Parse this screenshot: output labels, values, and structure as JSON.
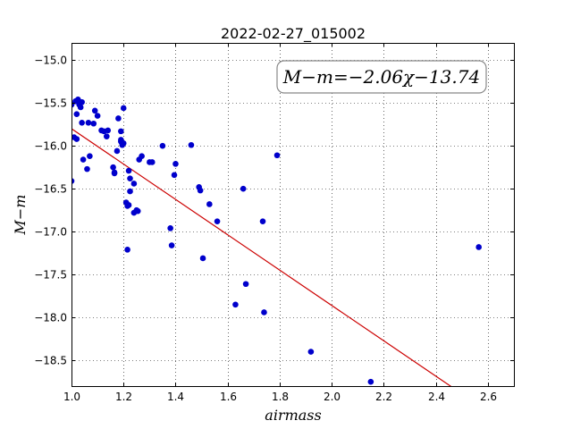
{
  "chart_data": {
    "type": "scatter",
    "title": "2022-02-27_015002",
    "xlabel": "airmass",
    "ylabel": "M−m",
    "xlim": [
      1.0,
      2.7
    ],
    "ylim": [
      -18.8,
      -14.8
    ],
    "y_inverted": true,
    "grid": true,
    "xticks": [
      1.0,
      1.2,
      1.4,
      1.6,
      1.8,
      2.0,
      2.2,
      2.4,
      2.6
    ],
    "xtick_labels": [
      "1.0",
      "1.2",
      "1.4",
      "1.6",
      "1.8",
      "2.0",
      "2.2",
      "2.4",
      "2.6"
    ],
    "yticks": [
      -15.0,
      -15.5,
      -16.0,
      -16.5,
      -17.0,
      -17.5,
      -18.0,
      -18.5
    ],
    "ytick_labels": [
      "−15.0",
      "−15.5",
      "−16.0",
      "−16.5",
      "−17.0",
      "−17.5",
      "−18.0",
      "−18.5"
    ],
    "annotation": "M−m=−2.06χ−13.74",
    "fit": {
      "slope": -2.06,
      "intercept": -13.74,
      "color": "#cc0000"
    },
    "marker_color": "#0000cc",
    "points": [
      [
        1.0,
        -15.52
      ],
      [
        1.0,
        -16.41
      ],
      [
        1.01,
        -15.9
      ],
      [
        1.015,
        -15.48
      ],
      [
        1.02,
        -15.63
      ],
      [
        1.02,
        -15.92
      ],
      [
        1.025,
        -15.46
      ],
      [
        1.03,
        -15.52
      ],
      [
        1.035,
        -15.55
      ],
      [
        1.04,
        -15.49
      ],
      [
        1.04,
        -15.73
      ],
      [
        1.045,
        -16.16
      ],
      [
        1.06,
        -16.27
      ],
      [
        1.065,
        -15.73
      ],
      [
        1.07,
        -16.12
      ],
      [
        1.085,
        -15.74
      ],
      [
        1.09,
        -15.59
      ],
      [
        1.1,
        -15.65
      ],
      [
        1.115,
        -15.82
      ],
      [
        1.125,
        -15.83
      ],
      [
        1.135,
        -15.89
      ],
      [
        1.14,
        -15.82
      ],
      [
        1.16,
        -16.25
      ],
      [
        1.165,
        -16.32
      ],
      [
        1.165,
        -16.31
      ],
      [
        1.175,
        -16.06
      ],
      [
        1.18,
        -15.68
      ],
      [
        1.19,
        -15.83
      ],
      [
        1.19,
        -15.93
      ],
      [
        1.19,
        -15.95
      ],
      [
        1.195,
        -15.99
      ],
      [
        1.2,
        -15.56
      ],
      [
        1.2,
        -15.97
      ],
      [
        1.21,
        -16.66
      ],
      [
        1.215,
        -16.7
      ],
      [
        1.215,
        -17.21
      ],
      [
        1.22,
        -16.69
      ],
      [
        1.22,
        -16.29
      ],
      [
        1.225,
        -16.38
      ],
      [
        1.225,
        -16.53
      ],
      [
        1.24,
        -16.44
      ],
      [
        1.24,
        -16.78
      ],
      [
        1.25,
        -16.75
      ],
      [
        1.255,
        -16.76
      ],
      [
        1.26,
        -16.16
      ],
      [
        1.27,
        -16.12
      ],
      [
        1.3,
        -16.19
      ],
      [
        1.31,
        -16.19
      ],
      [
        1.35,
        -16.0
      ],
      [
        1.38,
        -16.96
      ],
      [
        1.385,
        -17.16
      ],
      [
        1.395,
        -16.34
      ],
      [
        1.4,
        -16.21
      ],
      [
        1.46,
        -15.99
      ],
      [
        1.49,
        -16.48
      ],
      [
        1.495,
        -16.52
      ],
      [
        1.505,
        -17.31
      ],
      [
        1.53,
        -16.68
      ],
      [
        1.56,
        -16.88
      ],
      [
        1.63,
        -17.85
      ],
      [
        1.66,
        -16.5
      ],
      [
        1.67,
        -17.61
      ],
      [
        1.735,
        -16.88
      ],
      [
        1.74,
        -17.94
      ],
      [
        1.79,
        -16.11
      ],
      [
        1.92,
        -18.4
      ],
      [
        2.15,
        -18.75
      ],
      [
        2.565,
        -17.18
      ]
    ]
  }
}
